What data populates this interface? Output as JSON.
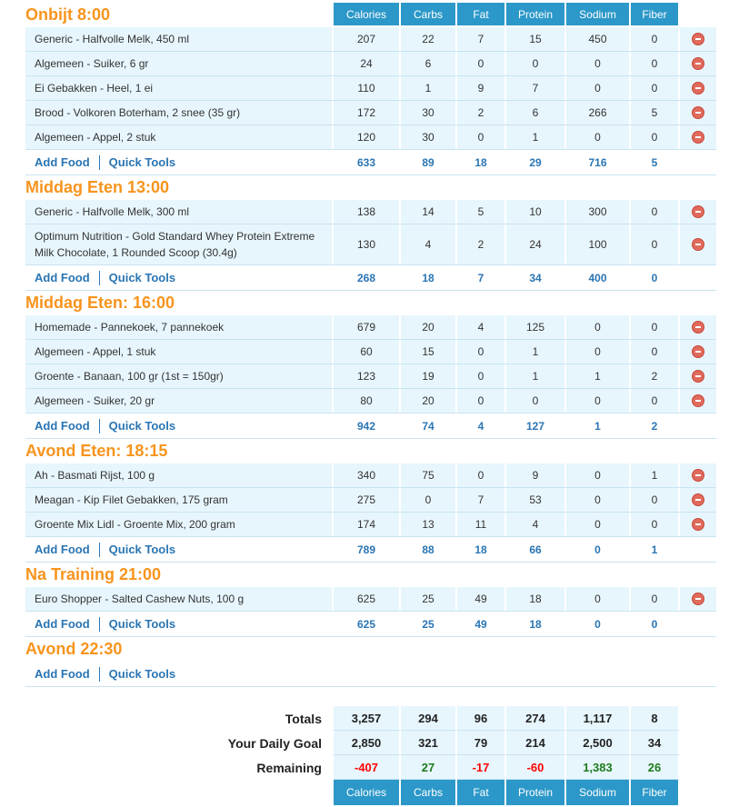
{
  "columns": [
    "Calories",
    "Carbs",
    "Fat",
    "Protein",
    "Sodium",
    "Fiber"
  ],
  "links": {
    "add_food": "Add Food",
    "quick_tools": "Quick Tools"
  },
  "meals": [
    {
      "title": "Onbijt 8:00",
      "entries": [
        {
          "name": "Generic - Halfvolle Melk, 450 ml",
          "values": [
            "207",
            "22",
            "7",
            "15",
            "450",
            "0"
          ]
        },
        {
          "name": "Algemeen - Suiker, 6 gr",
          "values": [
            "24",
            "6",
            "0",
            "0",
            "0",
            "0"
          ]
        },
        {
          "name": "Ei Gebakken - Heel, 1 ei",
          "values": [
            "110",
            "1",
            "9",
            "7",
            "0",
            "0"
          ]
        },
        {
          "name": "Brood - Volkoren Boterham, 2 snee (35 gr)",
          "values": [
            "172",
            "30",
            "2",
            "6",
            "266",
            "5"
          ]
        },
        {
          "name": "Algemeen - Appel, 2 stuk",
          "values": [
            "120",
            "30",
            "0",
            "1",
            "0",
            "0"
          ]
        }
      ],
      "totals": [
        "633",
        "89",
        "18",
        "29",
        "716",
        "5"
      ]
    },
    {
      "title": "Middag Eten 13:00",
      "entries": [
        {
          "name": "Generic - Halfvolle Melk, 300 ml",
          "values": [
            "138",
            "14",
            "5",
            "10",
            "300",
            "0"
          ]
        },
        {
          "name": "Optimum Nutrition - Gold Standard Whey Protein Extreme Milk Chocolate, 1 Rounded Scoop (30.4g)",
          "values": [
            "130",
            "4",
            "2",
            "24",
            "100",
            "0"
          ]
        }
      ],
      "totals": [
        "268",
        "18",
        "7",
        "34",
        "400",
        "0"
      ]
    },
    {
      "title": "Middag Eten: 16:00",
      "entries": [
        {
          "name": "Homemade - Pannekoek, 7 pannekoek",
          "values": [
            "679",
            "20",
            "4",
            "125",
            "0",
            "0"
          ]
        },
        {
          "name": "Algemeen - Appel, 1 stuk",
          "values": [
            "60",
            "15",
            "0",
            "1",
            "0",
            "0"
          ]
        },
        {
          "name": "Groente - Banaan, 100 gr (1st = 150gr)",
          "values": [
            "123",
            "19",
            "0",
            "1",
            "1",
            "2"
          ]
        },
        {
          "name": "Algemeen - Suiker, 20 gr",
          "values": [
            "80",
            "20",
            "0",
            "0",
            "0",
            "0"
          ]
        }
      ],
      "totals": [
        "942",
        "74",
        "4",
        "127",
        "1",
        "2"
      ]
    },
    {
      "title": "Avond Eten: 18:15",
      "entries": [
        {
          "name": "Ah - Basmati Rijst, 100 g",
          "values": [
            "340",
            "75",
            "0",
            "9",
            "0",
            "1"
          ]
        },
        {
          "name": "Meagan - Kip Filet Gebakken, 175 gram",
          "values": [
            "275",
            "0",
            "7",
            "53",
            "0",
            "0"
          ]
        },
        {
          "name": "Groente Mix Lidl - Groente Mix, 200 gram",
          "values": [
            "174",
            "13",
            "11",
            "4",
            "0",
            "0"
          ]
        }
      ],
      "totals": [
        "789",
        "88",
        "18",
        "66",
        "0",
        "1"
      ]
    },
    {
      "title": "Na Training 21:00",
      "entries": [
        {
          "name": "Euro Shopper - Salted Cashew Nuts, 100 g",
          "values": [
            "625",
            "25",
            "49",
            "18",
            "0",
            "0"
          ]
        }
      ],
      "totals": [
        "625",
        "25",
        "49",
        "18",
        "0",
        "0"
      ]
    },
    {
      "title": "Avond 22:30",
      "entries": [],
      "totals": null
    }
  ],
  "summary": {
    "totals": {
      "label": "Totals",
      "values": [
        "3,257",
        "294",
        "96",
        "274",
        "1,117",
        "8"
      ]
    },
    "goal": {
      "label": "Your Daily Goal",
      "values": [
        "2,850",
        "321",
        "79",
        "214",
        "2,500",
        "34"
      ]
    },
    "remaining": {
      "label": "Remaining",
      "values": [
        "-407",
        "27",
        "-17",
        "-60",
        "1,383",
        "26"
      ]
    }
  },
  "colors": {
    "header": "#2c98c9",
    "meal_title": "#f7941d",
    "link": "#2a75b3",
    "negative": "#ff0000",
    "positive": "#1e7b1e"
  }
}
